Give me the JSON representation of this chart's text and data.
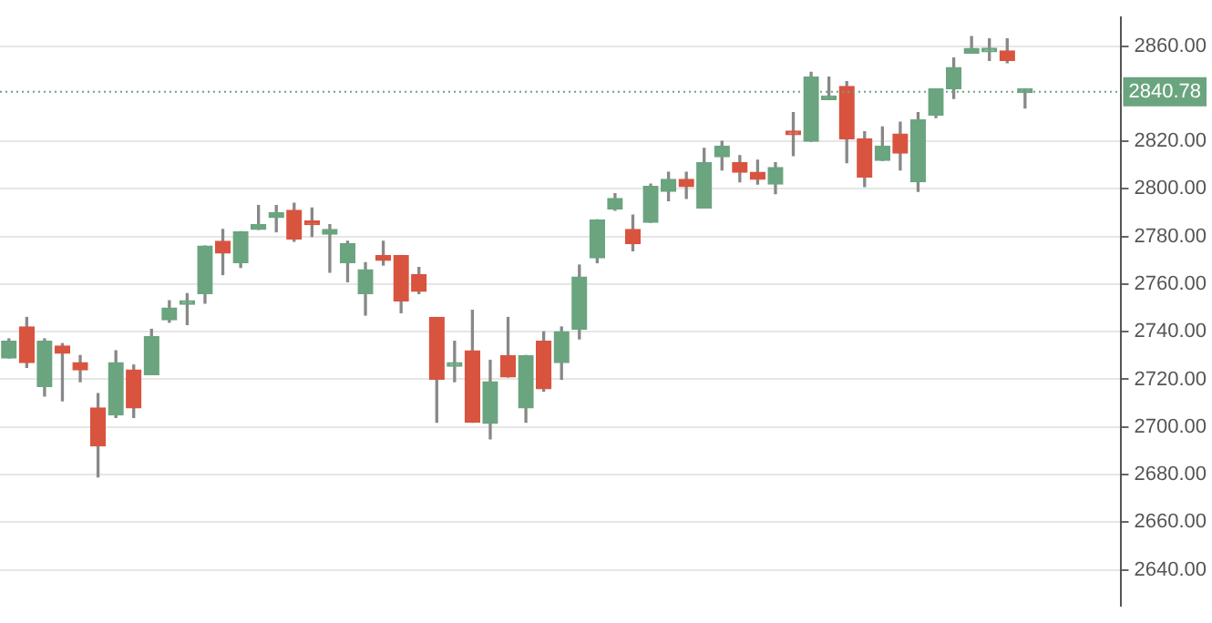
{
  "chart_data": {
    "type": "candlestick",
    "categories": [
      null,
      null,
      null,
      null,
      null,
      null,
      null,
      null,
      null,
      null,
      null,
      null,
      null,
      null,
      null,
      null,
      null,
      null,
      null,
      null,
      null,
      null,
      null,
      null,
      null,
      null,
      null,
      null,
      null,
      null,
      null,
      null,
      null,
      null,
      null,
      null,
      null,
      null,
      null,
      null,
      null,
      null,
      null,
      null,
      null,
      null,
      null,
      null,
      null,
      null,
      null,
      null,
      null,
      null,
      null,
      null,
      null,
      null
    ],
    "ohlc": [
      [
        2729,
        2737,
        2729,
        2736
      ],
      [
        2742,
        2746,
        2725,
        2727
      ],
      [
        2717,
        2737,
        2713,
        2736
      ],
      [
        2734,
        2735,
        2711,
        2731
      ],
      [
        2727,
        2730,
        2719,
        2724
      ],
      [
        2708,
        2714,
        2679,
        2692
      ],
      [
        2705,
        2732,
        2704,
        2727
      ],
      [
        2724,
        2726,
        2704,
        2708
      ],
      [
        2722,
        2741,
        2722,
        2738
      ],
      [
        2745,
        2753,
        2744,
        2750
      ],
      [
        2751.5,
        2756,
        2743,
        2752
      ],
      [
        2756,
        2776,
        2752,
        2776
      ],
      [
        2778,
        2783,
        2764,
        2773
      ],
      [
        2769,
        2782,
        2767,
        2782
      ],
      [
        2783,
        2793,
        2783,
        2785
      ],
      [
        2788,
        2793,
        2782,
        2790
      ],
      [
        2791,
        2794,
        2778,
        2779
      ],
      [
        2786,
        2792,
        2780,
        2785
      ],
      [
        2781,
        2785,
        2765,
        2783
      ],
      [
        2769,
        2778,
        2761,
        2777
      ],
      [
        2756,
        2769,
        2747,
        2766
      ],
      [
        2772,
        2778,
        2768,
        2770
      ],
      [
        2772,
        2772,
        2748,
        2753
      ],
      [
        2764,
        2767,
        2756,
        2757
      ],
      [
        2746,
        2746,
        2702,
        2720
      ],
      [
        2725.5,
        2736,
        2719,
        2726
      ],
      [
        2732,
        2749,
        2702,
        2702
      ],
      [
        2701.5,
        2728,
        2695,
        2719
      ],
      [
        2730,
        2746,
        2721,
        2721
      ],
      [
        2708,
        2730,
        2702,
        2730
      ],
      [
        2736,
        2740,
        2715,
        2716
      ],
      [
        2727,
        2742,
        2720,
        2740
      ],
      [
        2741,
        2768,
        2737,
        2763
      ],
      [
        2771,
        2787,
        2769,
        2787
      ],
      [
        2791.5,
        2798,
        2791,
        2796
      ],
      [
        2783,
        2789,
        2774,
        2777
      ],
      [
        2786,
        2802,
        2786,
        2801
      ],
      [
        2799,
        2807,
        2795,
        2804
      ],
      [
        2804,
        2807,
        2796,
        2801
      ],
      [
        2792,
        2817,
        2792,
        2811
      ],
      [
        2813.5,
        2820,
        2808,
        2818
      ],
      [
        2811,
        2814,
        2803,
        2807
      ],
      [
        2807,
        2812,
        2802,
        2804
      ],
      [
        2802,
        2811,
        2798,
        2809
      ],
      [
        2823.2,
        2832,
        2814,
        2822.8
      ],
      [
        2820,
        2849,
        2820,
        2847
      ],
      [
        2837.5,
        2847,
        2837.5,
        2839
      ],
      [
        2843,
        2845,
        2811,
        2821
      ],
      [
        2821,
        2824,
        2801,
        2805
      ],
      [
        2812,
        2826,
        2812,
        2818
      ],
      [
        2823,
        2828,
        2808,
        2815
      ],
      [
        2803,
        2832,
        2799,
        2829
      ],
      [
        2831,
        2842,
        2830,
        2842
      ],
      [
        2842,
        2855,
        2838,
        2851
      ],
      [
        2857,
        2864,
        2857,
        2859
      ],
      [
        2857.6,
        2863,
        2854,
        2858
      ],
      [
        2858,
        2863,
        2853,
        2854
      ],
      [
        2840.5,
        2842,
        2834,
        2841
      ]
    ],
    "colors": [
      "#6aa57f",
      "#d9543f",
      "#6aa57f",
      "#d9543f",
      "#d9543f",
      "#d9543f",
      "#6aa57f",
      "#d9543f",
      "#6aa57f",
      "#6aa57f",
      "#6aa57f",
      "#6aa57f",
      "#d9543f",
      "#6aa57f",
      "#6aa57f",
      "#6aa57f",
      "#d9543f",
      "#d9543f",
      "#6aa57f",
      "#6aa57f",
      "#6aa57f",
      "#d9543f",
      "#d9543f",
      "#d9543f",
      "#d9543f",
      "#6aa57f",
      "#d9543f",
      "#6aa57f",
      "#d9543f",
      "#6aa57f",
      "#d9543f",
      "#6aa57f",
      "#6aa57f",
      "#6aa57f",
      "#6aa57f",
      "#d9543f",
      "#6aa57f",
      "#6aa57f",
      "#d9543f",
      "#6aa57f",
      "#6aa57f",
      "#d9543f",
      "#d9543f",
      "#6aa57f",
      "#d9543f",
      "#6aa57f",
      "#6aa57f",
      "#d9543f",
      "#d9543f",
      "#6aa57f",
      "#d9543f",
      "#6aa57f",
      "#6aa57f",
      "#6aa57f",
      "#6aa57f",
      "#6aa57f",
      "#d9543f",
      "#6aa57f"
    ],
    "ylim": [
      2625,
      2872
    ],
    "yticks": [
      {
        "value": 2640,
        "label": "2640.00"
      },
      {
        "value": 2660,
        "label": "2660.00"
      },
      {
        "value": 2680,
        "label": "2680.00"
      },
      {
        "value": 2700,
        "label": "2700.00"
      },
      {
        "value": 2720,
        "label": "2720.00"
      },
      {
        "value": 2740,
        "label": "2740.00"
      },
      {
        "value": 2760,
        "label": "2760.00"
      },
      {
        "value": 2780,
        "label": "2780.00"
      },
      {
        "value": 2800,
        "label": "2800.00"
      },
      {
        "value": 2820,
        "label": "2820.00"
      },
      {
        "value": 2860,
        "label": "2860.00"
      }
    ],
    "ref_lines": [
      {
        "axis": "y",
        "value": 2840.78,
        "label": "2840.78",
        "color": "#6aa57f",
        "line_style": "dotted"
      }
    ],
    "grid": "y",
    "tick_labels": "y"
  }
}
